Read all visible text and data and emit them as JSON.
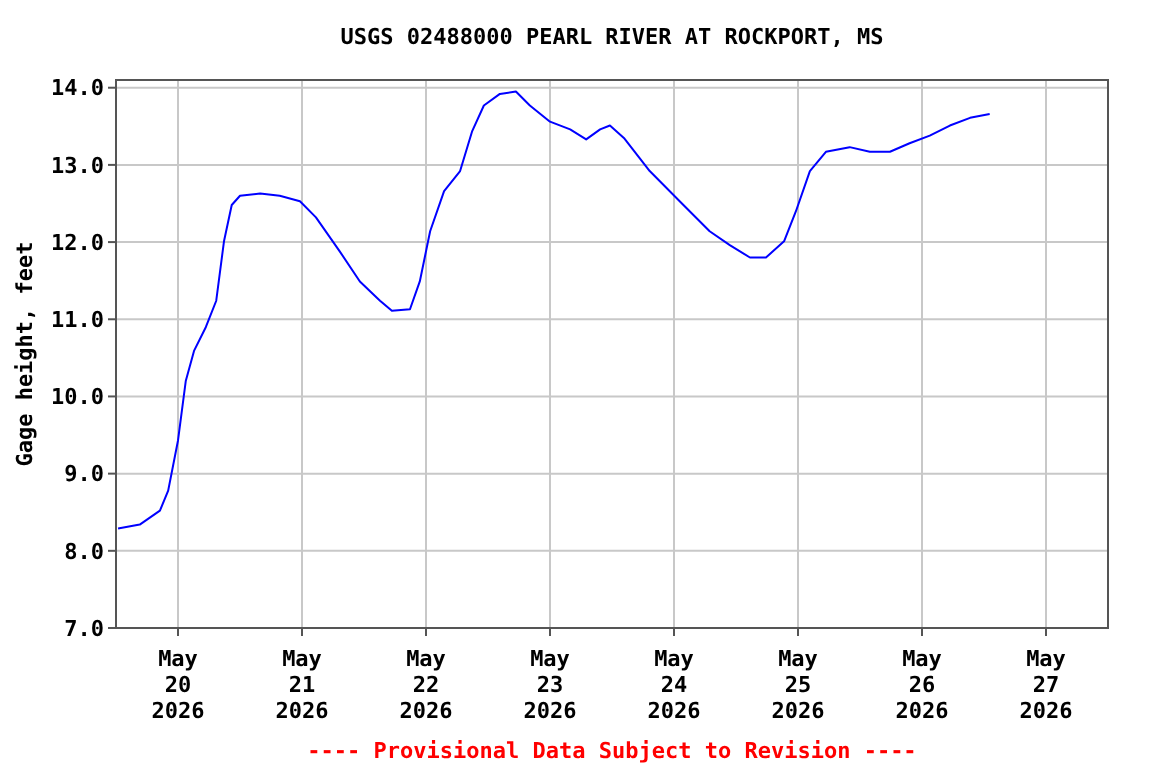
{
  "chart_data": {
    "type": "line",
    "title": "USGS 02488000 PEARL RIVER AT ROCKPORT, MS",
    "ylabel": "Gage height, feet",
    "annotations": [
      "---- Provisional Data Subject to Revision ----"
    ],
    "xlim": [
      "2026-05-19T12:00",
      "2026-05-27T12:00"
    ],
    "xticks": [
      {
        "value": "2026-05-20",
        "label": "May\n20\n2026"
      },
      {
        "value": "2026-05-21",
        "label": "May\n21\n2026"
      },
      {
        "value": "2026-05-22",
        "label": "May\n22\n2026"
      },
      {
        "value": "2026-05-23",
        "label": "May\n23\n2026"
      },
      {
        "value": "2026-05-24",
        "label": "May\n24\n2026"
      },
      {
        "value": "2026-05-25",
        "label": "May\n25\n2026"
      },
      {
        "value": "2026-05-26",
        "label": "May\n26\n2026"
      },
      {
        "value": "2026-05-27",
        "label": "May\n27\n2026"
      }
    ],
    "ylim": [
      7,
      14.1
    ],
    "yticks": [
      {
        "value": 7,
        "label": "7.0"
      },
      {
        "value": 8,
        "label": "8.0"
      },
      {
        "value": 9,
        "label": "9.0"
      },
      {
        "value": 10,
        "label": "10.0"
      },
      {
        "value": 11,
        "label": "11.0"
      },
      {
        "value": 12,
        "label": "12.0"
      },
      {
        "value": 13,
        "label": "13.0"
      },
      {
        "value": 14,
        "label": "14.0"
      }
    ],
    "grid": true,
    "series": [
      {
        "color": "#0000ff",
        "x": [
          "2026-05-19T12:24",
          "2026-05-19T16:36",
          "2026-05-19T20:30",
          "2026-05-19T22:06",
          "2026-05-20T00:00",
          "2026-05-20T01:30",
          "2026-05-20T03:06",
          "2026-05-20T05:24",
          "2026-05-20T07:24",
          "2026-05-20T08:54",
          "2026-05-20T10:24",
          "2026-05-20T12:00",
          "2026-05-20T15:54",
          "2026-05-20T19:42",
          "2026-05-20T23:36",
          "2026-05-21T02:42",
          "2026-05-21T07:18",
          "2026-05-21T11:12",
          "2026-05-21T15:06",
          "2026-05-21T17:24",
          "2026-05-21T20:54",
          "2026-05-21T22:48",
          "2026-05-22T00:48",
          "2026-05-22T03:30",
          "2026-05-22T06:36",
          "2026-05-22T08:54",
          "2026-05-22T11:12",
          "2026-05-22T14:18",
          "2026-05-22T17:24",
          "2026-05-22T20:06",
          "2026-05-23T00:00",
          "2026-05-23T03:54",
          "2026-05-23T07:00",
          "2026-05-23T09:42",
          "2026-05-23T11:36",
          "2026-05-23T14:18",
          "2026-05-23T19:18",
          "2026-05-24T01:06",
          "2026-05-24T06:54",
          "2026-05-24T10:48",
          "2026-05-24T14:42",
          "2026-05-24T17:48",
          "2026-05-24T21:18",
          "2026-05-24T23:36",
          "2026-05-25T02:18",
          "2026-05-25T05:24",
          "2026-05-25T10:00",
          "2026-05-25T13:54",
          "2026-05-25T17:48",
          "2026-05-25T21:36",
          "2026-05-26T01:30",
          "2026-05-26T05:24",
          "2026-05-26T09:18",
          "2026-05-26T13:06"
        ],
        "values": [
          8.29,
          8.34,
          8.52,
          8.78,
          9.43,
          10.2,
          10.59,
          10.9,
          11.24,
          12.01,
          12.48,
          12.6,
          12.63,
          12.6,
          12.53,
          12.32,
          11.88,
          11.49,
          11.24,
          11.11,
          11.13,
          11.49,
          12.14,
          12.66,
          12.92,
          13.43,
          13.77,
          13.92,
          13.95,
          13.77,
          13.56,
          13.46,
          13.33,
          13.46,
          13.51,
          13.35,
          12.92,
          12.53,
          12.14,
          11.96,
          11.8,
          11.8,
          12.01,
          12.4,
          12.92,
          13.17,
          13.23,
          13.17,
          13.17,
          13.28,
          13.38,
          13.51,
          13.61,
          13.66
        ]
      }
    ]
  }
}
